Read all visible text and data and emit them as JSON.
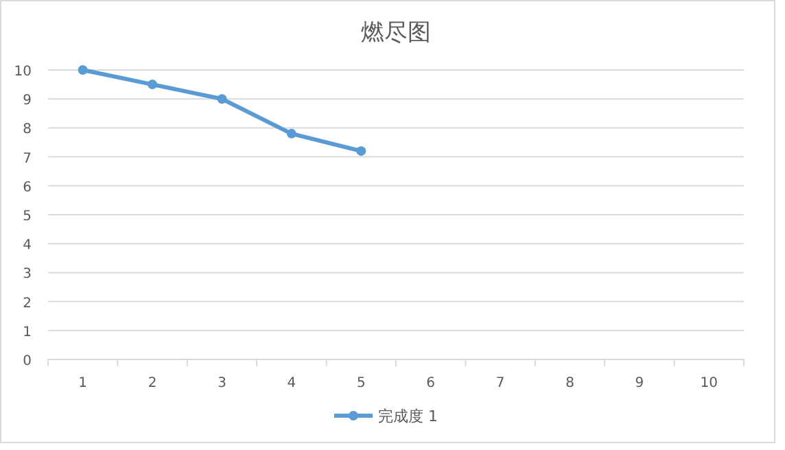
{
  "chart_data": {
    "type": "line",
    "title": "燃尽图",
    "categories": [
      "1",
      "2",
      "3",
      "4",
      "5",
      "6",
      "7",
      "8",
      "9",
      "10"
    ],
    "series": [
      {
        "name": "完成度 1",
        "color": "#5b9bd5",
        "values": [
          10,
          9.5,
          9,
          7.8,
          7.2,
          null,
          null,
          null,
          null,
          null
        ]
      }
    ],
    "ylim": [
      0,
      10
    ],
    "yticks": [
      0,
      1,
      2,
      3,
      4,
      5,
      6,
      7,
      8,
      9,
      10
    ],
    "grid": "y",
    "legend": "bottom",
    "marker": "circle",
    "line_style": "solid"
  }
}
